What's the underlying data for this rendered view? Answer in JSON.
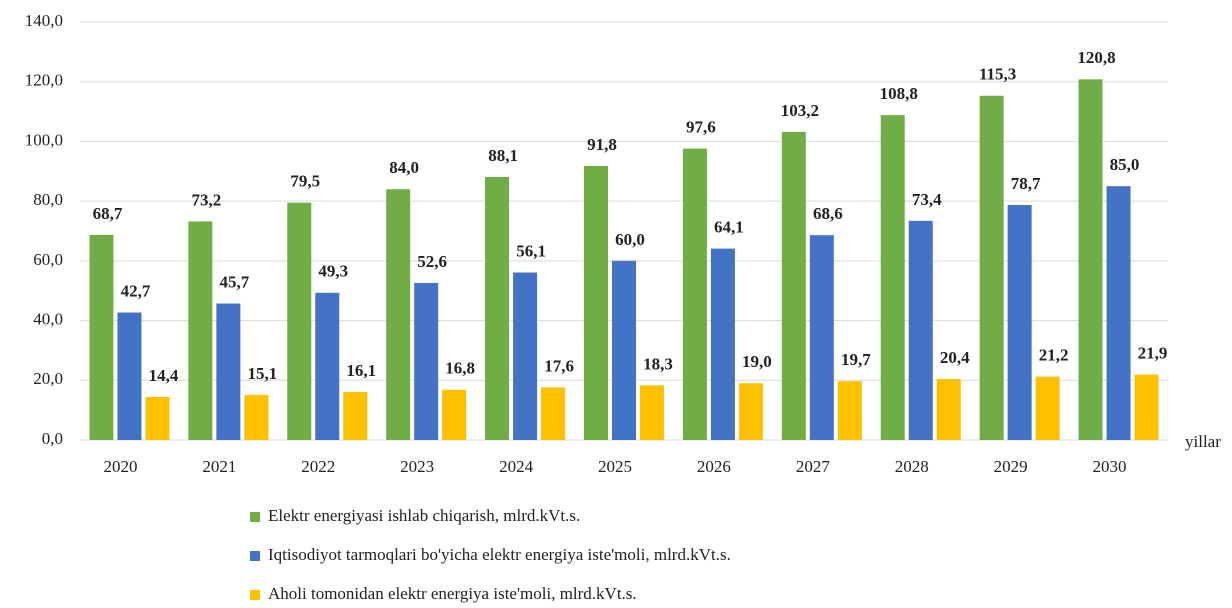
{
  "chart_data": {
    "type": "bar",
    "categories": [
      "2020",
      "2021",
      "2022",
      "2023",
      "2024",
      "2025",
      "2026",
      "2027",
      "2028",
      "2029",
      "2030"
    ],
    "x_label": "yillar",
    "series": [
      {
        "name": "Elektr energiyasi ishlab chiqarish, mlrd.kVt.s.",
        "color": "#70ad47",
        "values": [
          68.7,
          73.2,
          79.5,
          84.0,
          88.1,
          91.8,
          97.6,
          103.2,
          108.8,
          115.3,
          120.8
        ],
        "value_labels": [
          "68,7",
          "73,2",
          "79,5",
          "84,0",
          "88,1",
          "91,8",
          "97,6",
          "103,2",
          "108,8",
          "115,3",
          "120,8"
        ]
      },
      {
        "name": "Iqtisodiyot tarmoqlari bo'yicha elektr energiya iste'moli, mlrd.kVt.s.",
        "color": "#4472c4",
        "values": [
          42.7,
          45.7,
          49.3,
          52.6,
          56.1,
          60.0,
          64.1,
          68.6,
          73.4,
          78.7,
          85.0
        ],
        "value_labels": [
          "42,7",
          "45,7",
          "49,3",
          "52,6",
          "56,1",
          "60,0",
          "64,1",
          "68,6",
          "73,4",
          "78,7",
          "85,0"
        ]
      },
      {
        "name": "Aholi tomonidan elektr energiya iste'moli, mlrd.kVt.s.",
        "color": "#ffc000",
        "values": [
          14.4,
          15.1,
          16.1,
          16.8,
          17.6,
          18.3,
          19.0,
          19.7,
          20.4,
          21.2,
          21.9
        ],
        "value_labels": [
          "14,4",
          "15,1",
          "16,1",
          "16,8",
          "17,6",
          "18,3",
          "19,0",
          "19,7",
          "20,4",
          "21,2",
          "21,9"
        ]
      }
    ],
    "ylim": [
      0,
      140
    ],
    "yticks": [
      {
        "value": 0,
        "label": "0,0"
      },
      {
        "value": 20,
        "label": "20,0"
      },
      {
        "value": 40,
        "label": "40,0"
      },
      {
        "value": 60,
        "label": "60,0"
      },
      {
        "value": 80,
        "label": "80,0"
      },
      {
        "value": 100,
        "label": "100,0"
      },
      {
        "value": 120,
        "label": "120,0"
      },
      {
        "value": 140,
        "label": "140,0"
      }
    ],
    "grid": true,
    "legend": "bottom"
  }
}
